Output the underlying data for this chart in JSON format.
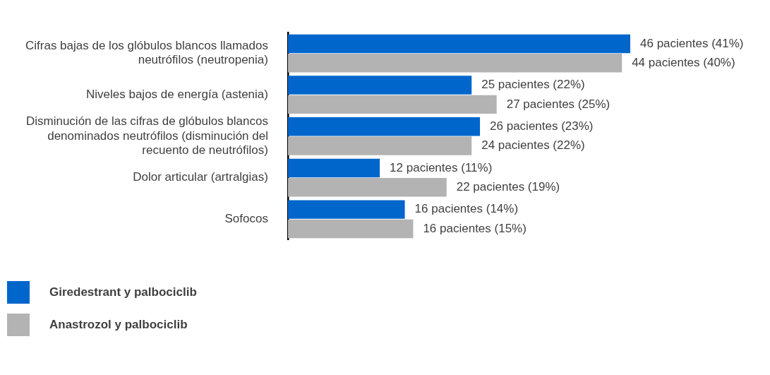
{
  "chart_data": {
    "type": "bar",
    "orientation": "horizontal",
    "categories": [
      "Cifras bajas de los glóbulos blancos llamados neutrófilos (neutropenia)",
      "Niveles bajos de energía (astenia)",
      "Disminución de las cifras de glóbulos blancos denominados neutrófilos (disminución del recuento de neutrófilos)",
      "Dolor articular (artralgias)",
      "Sofocos"
    ],
    "series": [
      {
        "name": "Giredestrant y palbociclib",
        "color": "#0066cc",
        "values": [
          41,
          22,
          23,
          11,
          14
        ],
        "value_labels": [
          "46 pacientes (41%)",
          "25 pacientes (22%)",
          "26 pacientes (23%)",
          "12 pacientes (11%)",
          "16 pacientes (14%)"
        ]
      },
      {
        "name": "Anastrozol y palbociclib",
        "color": "#b3b3b3",
        "values": [
          40,
          25,
          22,
          19,
          15
        ],
        "value_labels": [
          "44 pacientes (40%)",
          "27 pacientes (25%)",
          "24 pacientes (22%)",
          "22 pacientes (19%)",
          "16 pacientes (15%)"
        ]
      }
    ],
    "xlim": [
      0,
      41
    ],
    "tick_labels": "y",
    "grid": false,
    "legend": "bottom left"
  }
}
